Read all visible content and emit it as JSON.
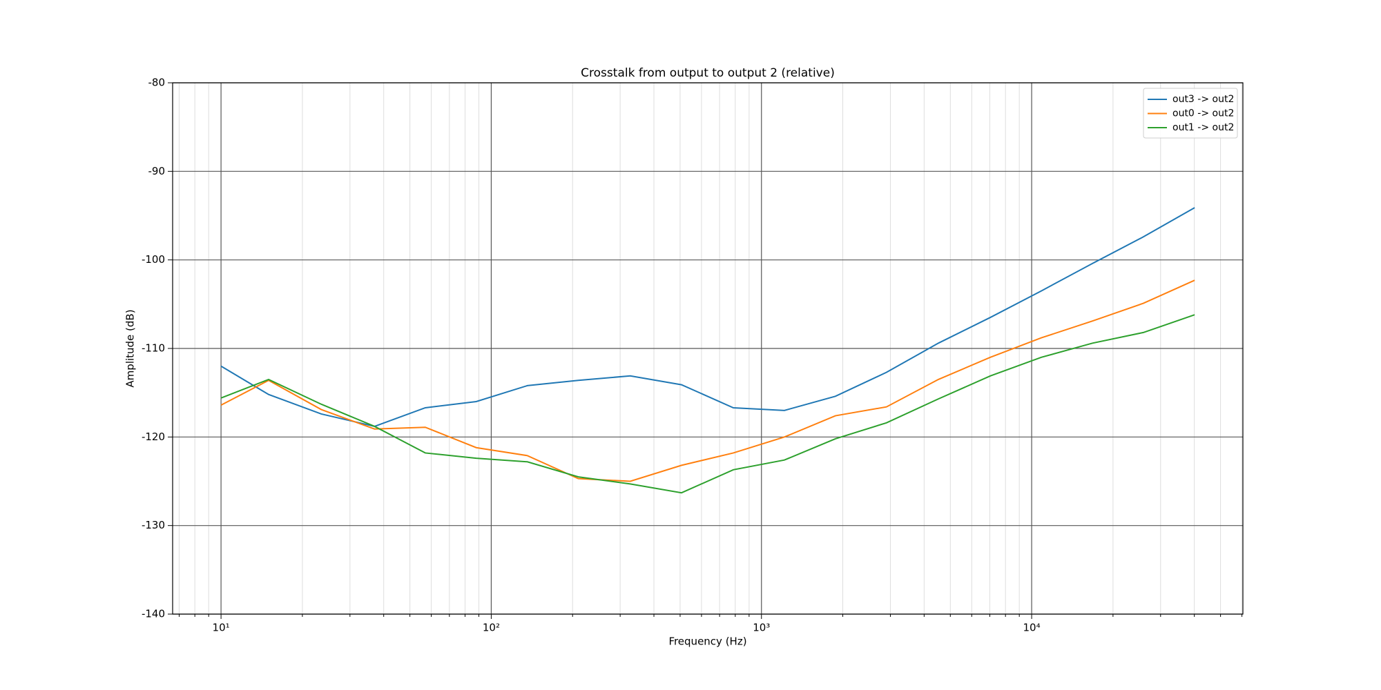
{
  "chart_data": {
    "type": "line",
    "title": "Crosstalk from output to output 2 (relative)",
    "x_label": "Frequency (Hz)",
    "y_label": "Amplitude (dB)",
    "x": [
      10,
      15,
      23.5,
      37,
      57,
      88,
      136,
      210,
      327,
      506,
      787,
      1216,
      1878,
      2901,
      4517,
      7031,
      10860,
      16800,
      25900,
      40100
    ],
    "series": [
      {
        "name": "out3 -> out2",
        "color": "#1f77b4",
        "values": [
          -112.0,
          -115.2,
          -117.4,
          -118.8,
          -116.7,
          -116.0,
          -114.2,
          -113.6,
          -113.1,
          -114.1,
          -116.7,
          -117.0,
          -115.4,
          -112.7,
          -109.4,
          -106.5,
          -103.5,
          -100.4,
          -97.4,
          -94.1
        ]
      },
      {
        "name": "out0 -> out2",
        "color": "#ff7f0e",
        "values": [
          -116.4,
          -113.6,
          -116.9,
          -119.1,
          -118.9,
          -121.2,
          -122.1,
          -124.7,
          -125.0,
          -123.2,
          -121.8,
          -120.0,
          -117.6,
          -116.6,
          -113.5,
          -111.0,
          -108.8,
          -106.9,
          -104.9,
          -102.3
        ]
      },
      {
        "name": "out1 -> out2",
        "color": "#2ca02c",
        "values": [
          -115.6,
          -113.5,
          -116.3,
          -118.8,
          -121.8,
          -122.4,
          -122.8,
          -124.5,
          -125.3,
          -126.3,
          -123.7,
          -122.6,
          -120.2,
          -118.4,
          -115.7,
          -113.1,
          -111.0,
          -109.4,
          -108.2,
          -106.2
        ]
      }
    ],
    "xscale": "log",
    "xlim": [
      6.62,
      60500
    ],
    "xticks": [
      {
        "value": 10,
        "label": "10¹"
      },
      {
        "value": 100,
        "label": "10²"
      },
      {
        "value": 1000,
        "label": "10³"
      },
      {
        "value": 10000,
        "label": "10⁴"
      }
    ],
    "xminorticks": [
      7,
      8,
      9,
      20,
      30,
      40,
      50,
      60,
      70,
      80,
      90,
      200,
      300,
      400,
      500,
      600,
      700,
      800,
      900,
      2000,
      3000,
      4000,
      5000,
      6000,
      7000,
      8000,
      9000,
      20000,
      30000,
      40000,
      50000,
      60000
    ],
    "ylim": [
      -140,
      -80
    ],
    "yticks": [
      -140,
      -130,
      -120,
      -110,
      -100,
      -90,
      -80
    ],
    "grid": true,
    "legend": "upper right"
  }
}
